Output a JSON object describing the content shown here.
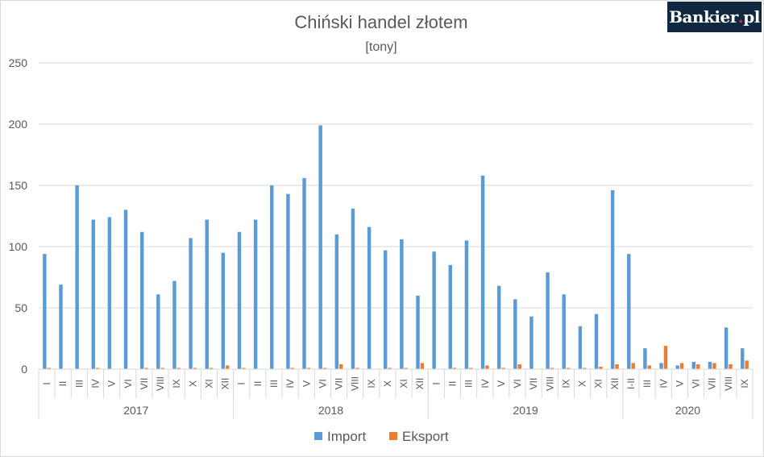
{
  "brand": {
    "name": "Bankier",
    "dot": ".",
    "suffix": "pl"
  },
  "colors": {
    "import": "#5b9bd5",
    "eksport": "#ed7d31",
    "grid": "#d9d9d9",
    "text": "#595959"
  },
  "chart_data": {
    "type": "bar",
    "title": "Chiński handel złotem",
    "subtitle": "[tony]",
    "ylim": [
      0,
      250
    ],
    "yticks": [
      0,
      50,
      100,
      150,
      200,
      250
    ],
    "grid": true,
    "legend": "bottom",
    "groups": [
      {
        "label": "2017",
        "months": [
          "I",
          "II",
          "III",
          "IV",
          "V",
          "VI",
          "VII",
          "VIII",
          "IX",
          "X",
          "XI",
          "XII"
        ]
      },
      {
        "label": "2018",
        "months": [
          "I",
          "II",
          "III",
          "IV",
          "V",
          "VI",
          "VII",
          "VIII",
          "IX",
          "X",
          "XI",
          "XII"
        ]
      },
      {
        "label": "2019",
        "months": [
          "I",
          "II",
          "III",
          "IV",
          "V",
          "VI",
          "VII",
          "VIII",
          "IX",
          "X",
          "XI",
          "XII"
        ]
      },
      {
        "label": "2020",
        "months": [
          "I-II",
          "III",
          "IV",
          "V",
          "VI",
          "VII",
          "VIII",
          "IX"
        ]
      }
    ],
    "series": [
      {
        "name": "Import",
        "values": [
          94,
          69,
          150,
          122,
          124,
          130,
          112,
          61,
          72,
          107,
          122,
          95,
          112,
          122,
          150,
          143,
          156,
          199,
          110,
          131,
          116,
          97,
          106,
          60,
          96,
          85,
          105,
          158,
          68,
          57,
          43,
          79,
          61,
          35,
          45,
          146,
          94,
          17,
          5,
          3,
          6,
          6,
          34,
          17
        ]
      },
      {
        "name": "Eksport",
        "values": [
          1,
          0,
          0,
          1,
          0,
          0,
          1,
          1,
          1,
          1,
          1,
          3,
          1,
          0,
          0,
          1,
          1,
          1,
          4,
          1,
          0,
          1,
          1,
          5,
          0,
          1,
          1,
          3,
          1,
          4,
          0,
          1,
          1,
          1,
          2,
          4,
          5,
          3,
          19,
          5,
          4,
          5,
          4,
          7
        ]
      }
    ]
  }
}
